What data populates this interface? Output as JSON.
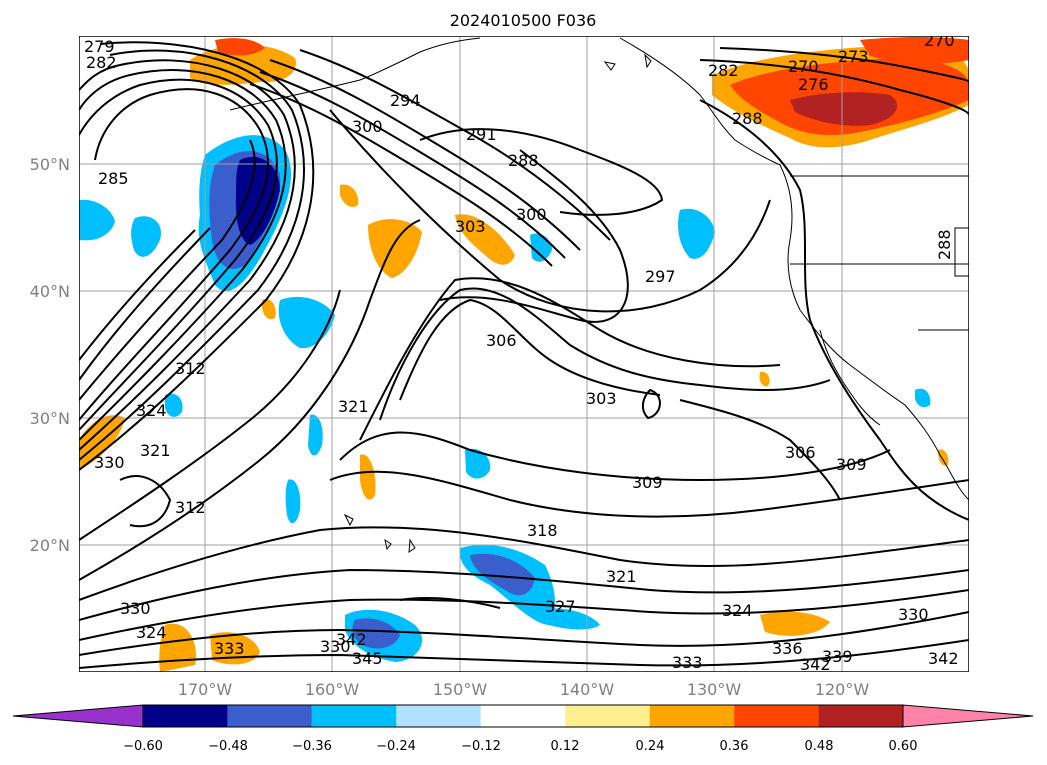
{
  "title": "2024010500 F036",
  "latitude_labels": [
    "50°N",
    "40°N",
    "30°N",
    "20°N"
  ],
  "longitude_labels": [
    "170°W",
    "160°W",
    "150°W",
    "140°W",
    "130°W",
    "120°W"
  ],
  "colorbar": {
    "ticks": [
      "−0.60",
      "−0.48",
      "−0.36",
      "−0.24",
      "−0.12",
      "0.12",
      "0.24",
      "0.36",
      "0.48",
      "0.60"
    ],
    "colors": [
      "#9932cc",
      "#00008b",
      "#3a5fcd",
      "#00bfff",
      "#b0e2ff",
      "#ffffff",
      "#fff08f",
      "#ffa500",
      "#ff4500",
      "#b22222",
      "#ff82ab"
    ]
  },
  "contour_labels": [
    "279",
    "282",
    "294",
    "300",
    "291",
    "288",
    "285",
    "303",
    "300",
    "297",
    "282",
    "273",
    "270",
    "276",
    "270",
    "288",
    "306",
    "303",
    "321",
    "312",
    "324",
    "321",
    "330",
    "312",
    "318",
    "309",
    "306",
    "309",
    "321",
    "324",
    "327",
    "330",
    "324",
    "330",
    "333",
    "342",
    "345",
    "336",
    "339",
    "333",
    "342",
    "330",
    "342",
    "288"
  ],
  "fill_colors": {
    "deep_blue": "#00008b",
    "mid_blue": "#3a5fcd",
    "light_blue": "#00bfff",
    "pale_blue": "#b0e2ff",
    "pale_yellow": "#fff08f",
    "orange": "#ffa500",
    "red_orange": "#ff4500",
    "dark_red": "#b22222"
  }
}
